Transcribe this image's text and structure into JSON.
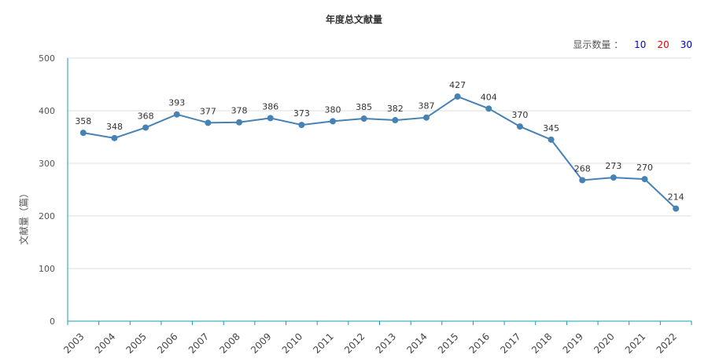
{
  "chart_data": {
    "type": "line",
    "title": "年度总文献量",
    "ylabel": "文献量（篇）",
    "xlabel": "",
    "ylim": [
      0,
      500
    ],
    "yticks": [
      0,
      100,
      200,
      300,
      400,
      500
    ],
    "grid": true,
    "categories": [
      "2003",
      "2004",
      "2005",
      "2006",
      "2007",
      "2008",
      "2009",
      "2010",
      "2011",
      "2012",
      "2013",
      "2014",
      "2015",
      "2016",
      "2017",
      "2018",
      "2019",
      "2020",
      "2021",
      "2022"
    ],
    "series": [
      {
        "values": [
          358,
          348,
          368,
          393,
          377,
          378,
          386,
          373,
          380,
          385,
          382,
          387,
          427,
          404,
          370,
          345,
          268,
          273,
          270,
          214
        ]
      }
    ]
  },
  "controls": {
    "label": "显示数量 ：",
    "options": [
      {
        "label": "10",
        "color": "#0000cc"
      },
      {
        "label": "20",
        "color": "#e60000"
      },
      {
        "label": "30",
        "color": "#0000cc"
      }
    ]
  },
  "colors": {
    "line": "#4682b4",
    "axis": "#1a9bb5",
    "grid": "#dddddd"
  }
}
